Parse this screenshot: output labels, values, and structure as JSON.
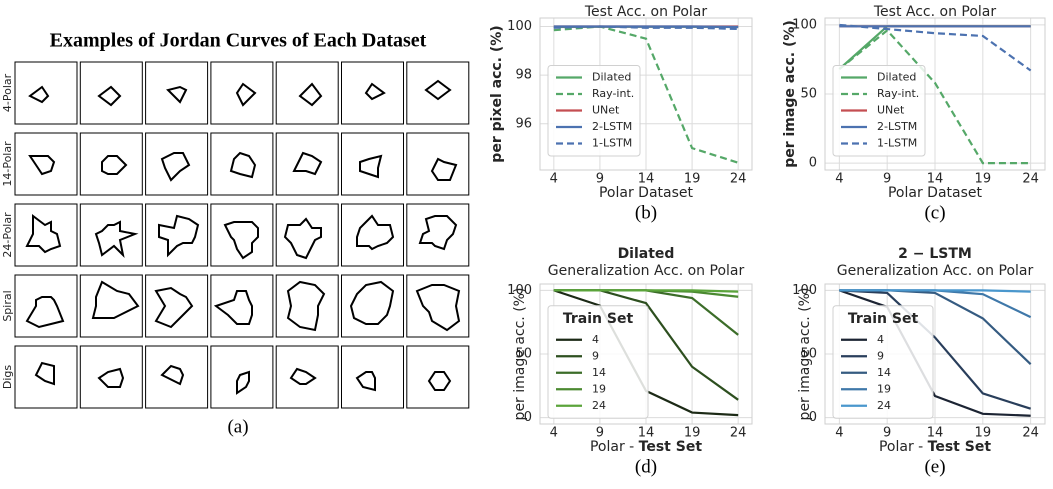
{
  "panel_a": {
    "title": "Examples of Jordan Curves of Each Dataset",
    "rows": [
      "4-Polar",
      "14-Polar",
      "24-Polar",
      "Spiral",
      "Digs"
    ],
    "caption": "(a)"
  },
  "chart_data": [
    {
      "type": "line",
      "title": "Test Acc. on Polar",
      "ylabel": "per pixel acc. (%)",
      "ylabel_bold": true,
      "xlabel": [
        "Polar Dataset"
      ],
      "caption": "(b)",
      "legend": "lower left",
      "grid": true,
      "x": [
        4,
        9,
        14,
        19,
        24
      ],
      "xlim": [
        2.5,
        25.5
      ],
      "xticks": [
        4,
        9,
        14,
        19,
        24
      ],
      "ylim": [
        94.1,
        100.35
      ],
      "yticks": [
        96,
        98,
        100
      ],
      "series": [
        {
          "name": "Dilated",
          "color": "#55a868",
          "dash": false,
          "values": [
            99.98,
            99.99,
            99.99,
            99.99,
            99.98
          ]
        },
        {
          "name": "Ray-int.",
          "color": "#55a868",
          "dash": true,
          "values": [
            99.85,
            100,
            99.5,
            95,
            94.4
          ]
        },
        {
          "name": "UNet",
          "color": "#c44e52",
          "dash": false,
          "values": [
            100,
            100,
            100,
            100,
            100
          ]
        },
        {
          "name": "2-LSTM",
          "color": "#4c72b0",
          "dash": false,
          "values": [
            100,
            100,
            100,
            100,
            99.98
          ]
        },
        {
          "name": "1-LSTM",
          "color": "#4c72b0",
          "dash": true,
          "values": [
            99.95,
            100,
            99.95,
            99.95,
            99.9
          ]
        }
      ]
    },
    {
      "type": "line",
      "title": "Test Acc. on Polar",
      "ylabel": "per image acc. (%)",
      "ylabel_bold": true,
      "xlabel": [
        "Polar Dataset"
      ],
      "caption": "(c)",
      "legend": "lower left",
      "grid": true,
      "x": [
        4,
        9,
        14,
        19,
        24
      ],
      "xlim": [
        2.5,
        25.5
      ],
      "xticks": [
        4,
        9,
        14,
        19,
        24
      ],
      "ylim": [
        -5,
        105
      ],
      "yticks": [
        0,
        50,
        100
      ],
      "series": [
        {
          "name": "Dilated",
          "color": "#55a868",
          "dash": false,
          "values": [
            68,
            99,
            99,
            99,
            99
          ]
        },
        {
          "name": "Ray-int.",
          "color": "#55a868",
          "dash": true,
          "values": [
            68,
            96,
            58,
            0,
            0
          ]
        },
        {
          "name": "UNet",
          "color": "#c44e52",
          "dash": false,
          "values": [
            99,
            99,
            99,
            99,
            99
          ]
        },
        {
          "name": "2-LSTM",
          "color": "#4c72b0",
          "dash": false,
          "values": [
            99,
            99,
            99,
            99,
            99
          ]
        },
        {
          "name": "1-LSTM",
          "color": "#4c72b0",
          "dash": true,
          "values": [
            100,
            97,
            94,
            92,
            67
          ]
        }
      ]
    },
    {
      "type": "line",
      "title": "Dilated",
      "subtitle": "Generalization Acc. on Polar",
      "ylabel": "per image acc. (%)",
      "ylabel_bold": false,
      "xlabel": [
        "Polar - ",
        "Test Set"
      ],
      "caption": "(d)",
      "legend": "center left",
      "legend_title": "Train Set",
      "grid": true,
      "x": [
        4,
        9,
        14,
        19,
        24
      ],
      "xlim": [
        2.5,
        25.5
      ],
      "xticks": [
        4,
        9,
        14,
        19,
        24
      ],
      "ylim": [
        -5,
        105
      ],
      "yticks": [
        0,
        50,
        100
      ],
      "series": [
        {
          "name": "4",
          "color": "#1c2a16",
          "dash": false,
          "values": [
            100,
            88,
            21,
            4,
            2
          ]
        },
        {
          "name": "9",
          "color": "#2d4f1f",
          "dash": false,
          "values": [
            100,
            100,
            90,
            40,
            14
          ]
        },
        {
          "name": "14",
          "color": "#3c6d29",
          "dash": false,
          "values": [
            100,
            100,
            100,
            94,
            65
          ]
        },
        {
          "name": "19",
          "color": "#4b8a31",
          "dash": false,
          "values": [
            100,
            100,
            100,
            99,
            95
          ]
        },
        {
          "name": "24",
          "color": "#5ba43b",
          "dash": false,
          "values": [
            100,
            100,
            100,
            100,
            99
          ]
        }
      ]
    },
    {
      "type": "line",
      "title": "2 − LSTM",
      "subtitle": "Generalization Acc. on Polar",
      "ylabel": "per image acc. (%)",
      "ylabel_bold": false,
      "xlabel": [
        "Polar - ",
        "Test Set"
      ],
      "caption": "(e)",
      "legend": "center left",
      "legend_title": "Train Set",
      "grid": true,
      "x": [
        4,
        9,
        14,
        19,
        24
      ],
      "xlim": [
        2.5,
        25.5
      ],
      "xticks": [
        4,
        9,
        14,
        19,
        24
      ],
      "ylim": [
        -5,
        105
      ],
      "yticks": [
        0,
        50,
        100
      ],
      "series": [
        {
          "name": "4",
          "color": "#1c2433",
          "dash": false,
          "values": [
            100,
            87,
            17,
            3,
            1.5
          ]
        },
        {
          "name": "9",
          "color": "#293e5b",
          "dash": false,
          "values": [
            100,
            98,
            63,
            19,
            7
          ]
        },
        {
          "name": "14",
          "color": "#355b81",
          "dash": false,
          "values": [
            100,
            100,
            98,
            78,
            42
          ]
        },
        {
          "name": "19",
          "color": "#3f78a9",
          "dash": false,
          "values": [
            100,
            100,
            100,
            97,
            79
          ]
        },
        {
          "name": "24",
          "color": "#4a97cd",
          "dash": false,
          "values": [
            100,
            100,
            100,
            100,
            99
          ]
        }
      ]
    }
  ]
}
